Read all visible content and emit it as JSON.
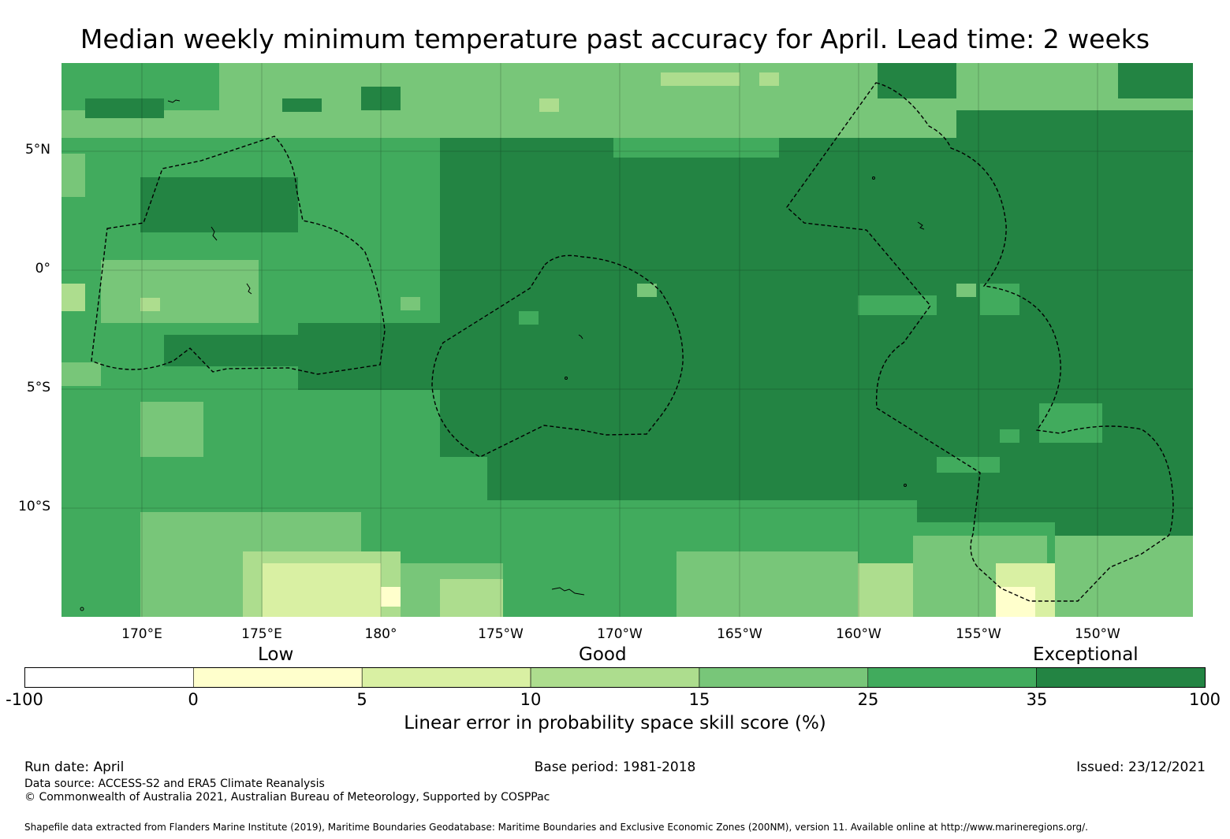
{
  "title": "Median weekly minimum temperature past accuracy for April. Lead time: 2 weeks",
  "map": {
    "lat_labels": [
      "5°N",
      "0°",
      "5°S",
      "10°S"
    ],
    "lon_labels": [
      "170°E",
      "175°E",
      "180°",
      "175°W",
      "170°W",
      "165°W",
      "160°W",
      "155°W",
      "150°W"
    ]
  },
  "legend": {
    "categories": [
      "Low",
      "Good",
      "Exceptional"
    ],
    "ticks": [
      "-100",
      "0",
      "5",
      "10",
      "15",
      "25",
      "35",
      "100"
    ],
    "colors": [
      "#ffffff",
      "#ffffcc",
      "#d9f0a3",
      "#addd8e",
      "#78c679",
      "#41ab5d",
      "#238443"
    ],
    "label": "Linear error in probability space skill score (%)"
  },
  "footer": {
    "run_date": "Run date: April",
    "base_period": "Base period: 1981-2018",
    "issued": "Issued: 23/12/2021",
    "data_source": "Data source: ACCESS-S2 and ERA5 Climate Reanalysis",
    "copyright": "© Commonwealth of Australia 2021, Australian Bureau of Meteorology, Supported by COSPPac",
    "shapefile_note": "Shapefile data extracted from Flanders Marine Institute (2019), Maritime Boundaries Geodatabase: Maritime Boundaries and Exclusive Economic Zones (200NM), version 11. Available online at http://www.marineregions.org/."
  }
}
